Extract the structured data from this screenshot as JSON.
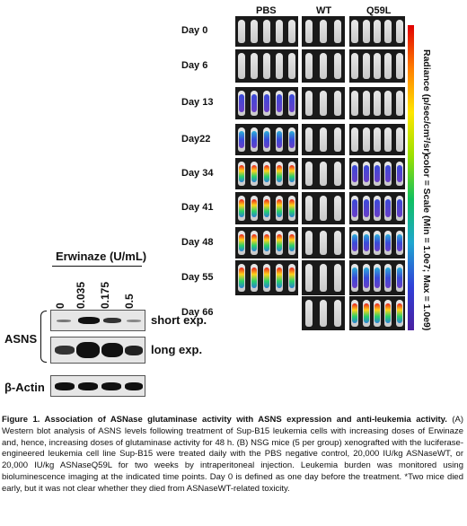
{
  "western_blot": {
    "treatment_label": "Erwinaze (U/mL)",
    "lanes": [
      "0",
      "0.035",
      "0.175",
      "0.5"
    ],
    "protein_labels": [
      "ASNS",
      "β-Actin"
    ],
    "exposure_labels": [
      "short exp.",
      "long exp."
    ]
  },
  "imaging": {
    "groups": [
      "PBS",
      "WT",
      "Q59L"
    ],
    "days": [
      "Day 0",
      "Day 6",
      "Day 13",
      "Day22",
      "Day 34",
      "Day 41",
      "Day 48",
      "Day 55",
      "Day 66"
    ],
    "colorbar_unit_label": "Radiance (p/sec/cm²/sr)",
    "colorbar_scale_label": "color = Scale (Min = 1.0e7; Max = 1.0e9)"
  },
  "caption": {
    "title": "Figure 1. Association of ASNase glutaminase activity with ASNS expression and anti-leukemia activity.",
    "text": "(A) Western blot analysis of ASNS levels following treatment of Sup-B15 leukemia cells with increasing doses of Erwinaze and, hence, increasing doses of glutaminase activity for 48 h. (B) NSG mice (5 per group) xenografted with the luciferase-engineered leukemia cell line Sup-B15 were treated daily with the PBS negative control, 20,000 IU/kg ASNaseWT, or 20,000 IU/kg ASNaseQ59L for two weeks by intraperitoneal injection. Leukemia burden was monitored using bioluminescence imaging at the indicated time points. Day 0 is defined as one day before the treatment. *Two mice died early, but it was not clear whether they died from ASNaseWT-related toxicity."
  }
}
